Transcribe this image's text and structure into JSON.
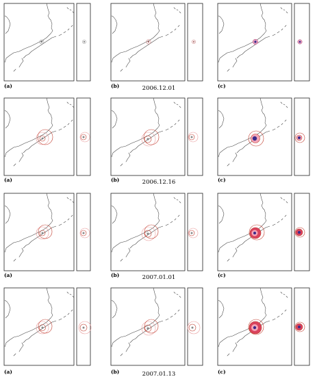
{
  "panel_labels": [
    "(a)",
    "(b)",
    "(c)"
  ],
  "rows": [
    {
      "date": "2006.12.01",
      "level": 0
    },
    {
      "date": "2006.12.16",
      "level": 1
    },
    {
      "date": "2007.01.01",
      "level": 2
    },
    {
      "date": "2007.01.13",
      "level": 3
    }
  ],
  "colors": {
    "frame": "#222222",
    "coastline": "#444444",
    "contour_red": "#c0392b",
    "contour_pink": "#e89a9a",
    "fill_pink": "#f3a6b8",
    "fill_red": "#d9435d",
    "core_blue": "#3a2a8a"
  },
  "icons": [
    "coastline-map",
    "anomaly-contours"
  ]
}
